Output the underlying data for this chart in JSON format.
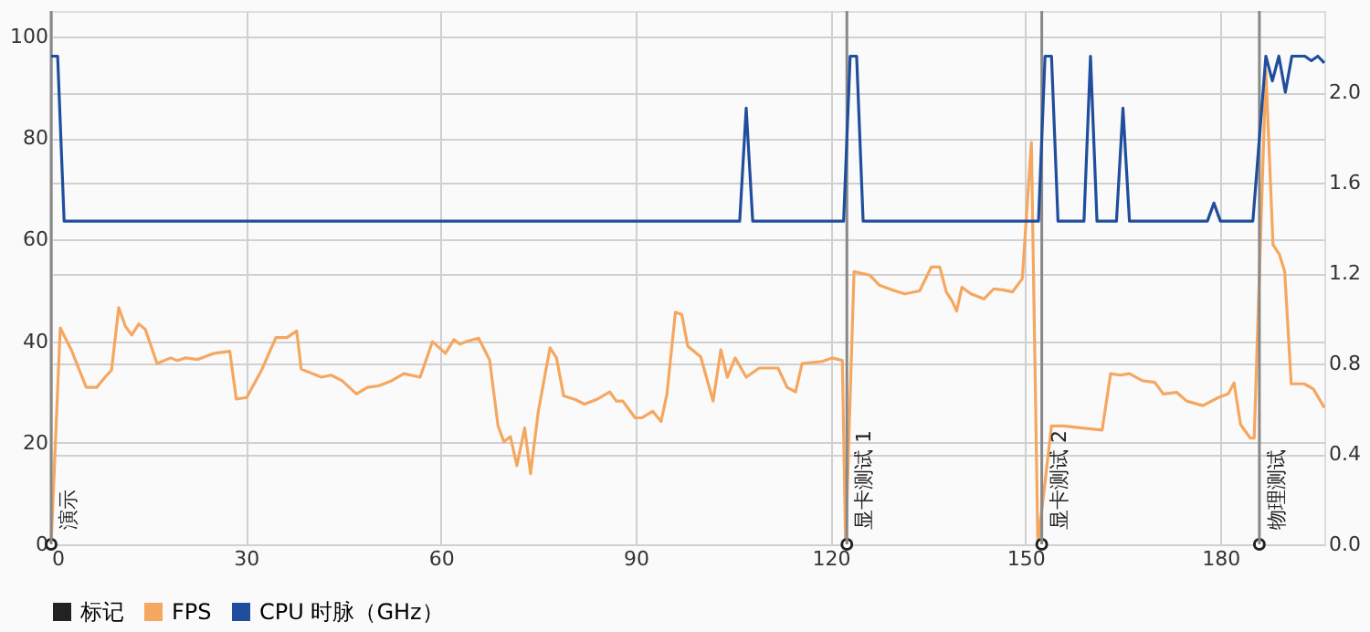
{
  "chart_data": {
    "type": "line",
    "xlim": [
      0,
      196
    ],
    "xticks": [
      0,
      30,
      60,
      90,
      120,
      150,
      180
    ],
    "ylim": [
      0,
      105
    ],
    "yticks": [
      0,
      20,
      40,
      60,
      80,
      100
    ],
    "y2lim": [
      0,
      2.36
    ],
    "y2ticks": [
      {
        "value": 0,
        "label": "0.0"
      },
      0.4,
      0.8,
      1.2,
      1.6,
      {
        "value": 2,
        "label": "2.0"
      }
    ],
    "grid": true,
    "legend": "bottom left",
    "line_style": "solid",
    "ref_lines": [
      {
        "axis": "x",
        "value": 0,
        "color": "#888888"
      },
      {
        "axis": "x",
        "value": 122.5,
        "color": "#888888"
      },
      {
        "axis": "x",
        "value": 152.5,
        "color": "#888888"
      },
      {
        "axis": "x",
        "value": 186,
        "color": "#888888"
      }
    ],
    "series": [
      {
        "name": "标记",
        "color": "#222222",
        "type": "scatter",
        "marker": "circle",
        "x": [
          0,
          122.5,
          152.5,
          186
        ],
        "values": [
          0,
          0,
          0,
          0
        ],
        "value_labels": [
          "演示",
          "显卡测试 1",
          "显卡测试 2",
          "物理测试"
        ]
      },
      {
        "name": "FPS",
        "color": "#f5a760",
        "x": [
          0,
          1.4,
          3.1,
          5.4,
          7,
          8.3,
          9.3,
          10.4,
          11.4,
          12.4,
          13.5,
          14.5,
          16.3,
          18.4,
          19.4,
          20.7,
          22.6,
          25.1,
          27.5,
          28.5,
          30.1,
          32.4,
          34.6,
          36.3,
          37.8,
          38.5,
          41.6,
          43.1,
          44.8,
          47,
          48.7,
          50.4,
          52.4,
          54.3,
          56.8,
          58.7,
          60.7,
          62,
          62.9,
          64.1,
          65.8,
          67.5,
          68.8,
          69.7,
          70.7,
          71.7,
          72.9,
          73.8,
          75,
          76.8,
          77.8,
          78.9,
          80.7,
          82.1,
          84.1,
          86,
          87,
          88,
          89.9,
          90.9,
          92.6,
          93.9,
          94.8,
          96.1,
          97.1,
          98,
          100,
          101.9,
          103.1,
          104.1,
          105.3,
          107,
          109,
          111.9,
          113.3,
          114.6,
          115.6,
          118.7,
          120.2,
          121.8,
          122.3,
          123.6,
          126,
          127.5,
          129.4,
          131.4,
          133.7,
          135.5,
          136.8,
          137.8,
          138.7,
          139.4,
          140.2,
          141.6,
          143.6,
          145.1,
          146.5,
          148,
          149.5,
          150.9,
          151.9,
          154,
          155.8,
          158.7,
          161.8,
          163.1,
          164.6,
          166,
          168,
          169.9,
          171.2,
          173.3,
          174.8,
          177.3,
          179.7,
          181.2,
          182.1,
          183.1,
          184.6,
          185.2,
          187,
          188.1,
          189.1,
          189.9,
          190.9,
          192.9,
          194.3,
          196
        ],
        "values": [
          0,
          42.6,
          38.3,
          30.9,
          30.9,
          32.9,
          34.3,
          46.6,
          43,
          41.2,
          43.4,
          42.3,
          35.6,
          36.7,
          36.2,
          36.7,
          36.4,
          37.6,
          38,
          28.6,
          28.9,
          34.3,
          40.7,
          40.7,
          42,
          34.5,
          32.9,
          33.3,
          32.2,
          29.6,
          30.9,
          31.2,
          32.2,
          33.6,
          32.9,
          39.9,
          37.6,
          40.3,
          39.4,
          40,
          40.6,
          36.3,
          23.3,
          20.2,
          21.2,
          15.5,
          22.9,
          13.9,
          26.2,
          38.7,
          36.7,
          29.2,
          28.5,
          27.6,
          28.6,
          30,
          28.2,
          28.2,
          24.9,
          24.9,
          26.2,
          24.2,
          29.6,
          45.7,
          45.2,
          39,
          36.9,
          28.2,
          38.3,
          32.9,
          36.7,
          32.9,
          34.7,
          34.7,
          30.9,
          30,
          35.6,
          36,
          36.7,
          36.2,
          0,
          53.7,
          53,
          51,
          50.1,
          49.3,
          49.9,
          54.6,
          54.6,
          49.7,
          47.9,
          45.9,
          50.6,
          49.3,
          48.3,
          50.3,
          50.1,
          49.7,
          52.3,
          79.1,
          0,
          23.3,
          23.3,
          22.9,
          22.5,
          33.6,
          33.3,
          33.6,
          32.2,
          31.9,
          29.6,
          29.9,
          28.2,
          27.3,
          28.9,
          29.6,
          31.8,
          23.6,
          20.9,
          20.9,
          93.2,
          59,
          57,
          53.7,
          31.6,
          31.6,
          30.6,
          26.9
        ]
      },
      {
        "name": "CPU 时脉（GHz）",
        "color": "#1f4e9c",
        "axis": "y2",
        "x": [
          0,
          1,
          2,
          106,
          107,
          108,
          122,
          123,
          124,
          125,
          152,
          153,
          154,
          155,
          159,
          160,
          161,
          164,
          165,
          166,
          178,
          179,
          180,
          185,
          187,
          188,
          189,
          190,
          191,
          193,
          194,
          195,
          196
        ],
        "values": [
          2.16,
          2.16,
          1.43,
          1.43,
          1.93,
          1.43,
          1.43,
          2.16,
          2.16,
          1.43,
          1.43,
          2.16,
          2.16,
          1.43,
          1.43,
          2.16,
          1.43,
          1.43,
          1.93,
          1.43,
          1.43,
          1.51,
          1.43,
          1.43,
          2.16,
          2.05,
          2.16,
          2.0,
          2.16,
          2.16,
          2.14,
          2.16,
          2.13
        ]
      }
    ]
  }
}
